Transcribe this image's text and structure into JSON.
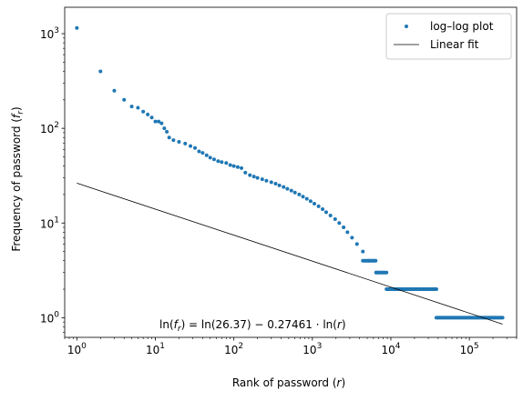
{
  "chart_data": {
    "type": "scatter",
    "xscale": "log",
    "yscale": "log",
    "xlim": [
      0.7,
      400000
    ],
    "ylim": [
      0.62,
      1900
    ],
    "xlabel": {
      "text": "Rank of password (",
      "var": "r",
      "close": ")"
    },
    "ylabel": {
      "text": "Frequency of password (",
      "var": "f",
      "sub": "r",
      "close": ")"
    },
    "x_ticks": [
      {
        "value": 1,
        "base": "10",
        "exp": "0"
      },
      {
        "value": 10,
        "base": "10",
        "exp": "1"
      },
      {
        "value": 100,
        "base": "10",
        "exp": "2"
      },
      {
        "value": 1000,
        "base": "10",
        "exp": "3"
      },
      {
        "value": 10000,
        "base": "10",
        "exp": "4"
      },
      {
        "value": 100000,
        "base": "10",
        "exp": "5"
      }
    ],
    "y_ticks": [
      {
        "value": 1,
        "base": "10",
        "exp": "0"
      },
      {
        "value": 10,
        "base": "10",
        "exp": "1"
      },
      {
        "value": 100,
        "base": "10",
        "exp": "2"
      },
      {
        "value": 1000,
        "base": "10",
        "exp": "3"
      }
    ],
    "series": [
      {
        "name": "log–log plot",
        "kind": "scatter",
        "color": "#1f77b4",
        "points": [
          [
            1,
            1150
          ],
          [
            2,
            400
          ],
          [
            3,
            250
          ],
          [
            4,
            200
          ],
          [
            5,
            170
          ],
          [
            6,
            165
          ],
          [
            7,
            150
          ],
          [
            8,
            140
          ],
          [
            9,
            130
          ],
          [
            10,
            118
          ],
          [
            11,
            118
          ],
          [
            12,
            113
          ],
          [
            13,
            100
          ],
          [
            14,
            92
          ],
          [
            15,
            80
          ],
          [
            17,
            75
          ],
          [
            20,
            72
          ],
          [
            24,
            69
          ],
          [
            28,
            65
          ],
          [
            32,
            62
          ],
          [
            36,
            57
          ],
          [
            40,
            55
          ],
          [
            45,
            52
          ],
          [
            50,
            49
          ],
          [
            56,
            47
          ],
          [
            63,
            45
          ],
          [
            70,
            44
          ],
          [
            80,
            43
          ],
          [
            90,
            41
          ],
          [
            100,
            40
          ],
          [
            112,
            39
          ],
          [
            125,
            38
          ],
          [
            140,
            34
          ],
          [
            160,
            32
          ],
          [
            180,
            31
          ],
          [
            200,
            30
          ],
          [
            230,
            29
          ],
          [
            260,
            28
          ],
          [
            300,
            27
          ],
          [
            340,
            26
          ],
          [
            380,
            25
          ],
          [
            430,
            24
          ],
          [
            480,
            23
          ],
          [
            540,
            22
          ],
          [
            600,
            21
          ],
          [
            680,
            20
          ],
          [
            760,
            19
          ],
          [
            850,
            18
          ],
          [
            950,
            17
          ],
          [
            1060,
            16
          ],
          [
            1200,
            15
          ],
          [
            1350,
            14
          ],
          [
            1500,
            13
          ],
          [
            1700,
            12
          ],
          [
            1950,
            11
          ],
          [
            2200,
            10
          ],
          [
            2500,
            9
          ],
          [
            2800,
            8
          ],
          [
            3200,
            7
          ],
          [
            3700,
            6
          ],
          [
            4400,
            5
          ],
          [
            5200,
            4
          ],
          [
            6500,
            3
          ]
        ],
        "plateaus": [
          {
            "y": 4,
            "from": 4400,
            "to": 6400
          },
          {
            "y": 3,
            "from": 6500,
            "to": 8800
          },
          {
            "y": 2,
            "from": 8800,
            "to": 38000
          },
          {
            "y": 1,
            "from": 38000,
            "to": 265000
          }
        ]
      },
      {
        "name": "Linear fit",
        "kind": "line",
        "color": "#000000",
        "intercept": 26.37,
        "slope": -0.27461,
        "x_range": [
          1,
          265000
        ]
      }
    ],
    "legend_loc": "upper right",
    "annotation": {
      "lhs_open": "ln(",
      "f": "f",
      "r_sub": "r",
      "lhs_close": ") = ln(26.37) − 0.27461 · ln(",
      "r": "r",
      "end": ")"
    }
  }
}
